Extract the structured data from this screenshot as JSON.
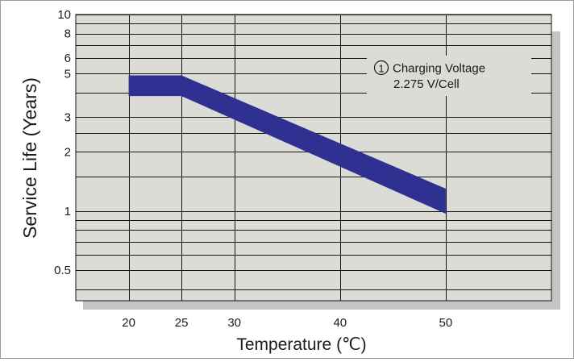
{
  "chart_data": {
    "type": "area",
    "title": "",
    "xlabel": "Temperature (℃)",
    "ylabel": "Service Life (Years)",
    "y_scale": "log",
    "xlim": [
      15,
      60
    ],
    "ylim": [
      0.35,
      10
    ],
    "x_ticks": [
      {
        "value": 20,
        "label": "20"
      },
      {
        "value": 25,
        "label": "25"
      },
      {
        "value": 30,
        "label": "30"
      },
      {
        "value": 40,
        "label": "40"
      },
      {
        "value": 50,
        "label": "50"
      }
    ],
    "y_ticks": [
      {
        "value": 10,
        "label": "10"
      },
      {
        "value": 8,
        "label": "8"
      },
      {
        "value": 6,
        "label": "6"
      },
      {
        "value": 5,
        "label": "5"
      },
      {
        "value": 3,
        "label": "3"
      },
      {
        "value": 2,
        "label": "2"
      },
      {
        "value": 1,
        "label": "1"
      },
      {
        "value": 0.5,
        "label": "0.5"
      }
    ],
    "y_grid": [
      10,
      9,
      8,
      7,
      6,
      5,
      4,
      3,
      2.5,
      2,
      1.5,
      1,
      0.9,
      0.8,
      0.7,
      0.6,
      0.5,
      0.4
    ],
    "x_grid": [
      20,
      25,
      30,
      40,
      50
    ],
    "grid": true,
    "series": [
      {
        "color": "#2e3192",
        "x": [
          20,
          25,
          50
        ],
        "upper": [
          4.9,
          4.9,
          1.3
        ],
        "lower": [
          3.85,
          3.85,
          0.97
        ]
      }
    ],
    "annotation": {
      "marker": "1",
      "line1": "Charging Voltage",
      "line2": "2.275 V/Cell"
    },
    "colors": {
      "plot_bg": "#dddbd6",
      "shadow": "#c4c4c4",
      "band": "#2e3192",
      "grid": "#141414"
    }
  }
}
